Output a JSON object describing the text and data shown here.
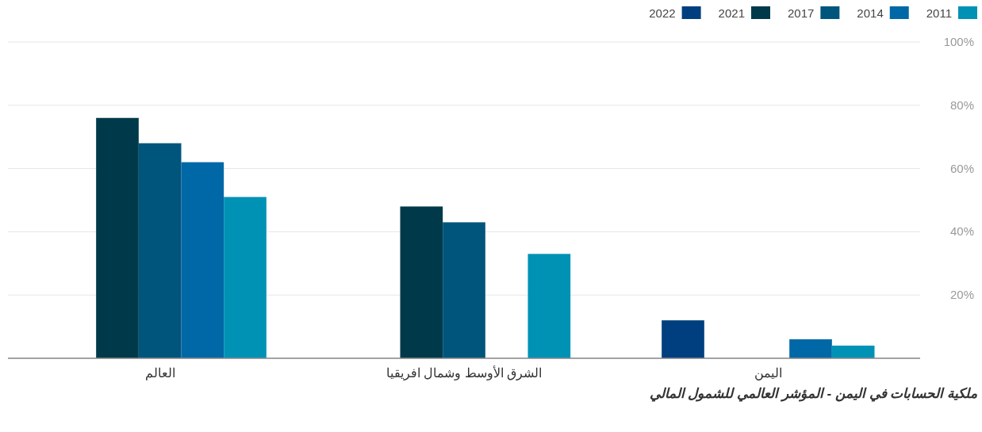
{
  "chart_data": {
    "type": "bar",
    "title": "ملكية الحسابات في اليمن - المؤشر العالمي للشمول المالي",
    "categories": [
      "العالم",
      "الشرق الأوسط وشمال افريقيا",
      "اليمن"
    ],
    "series": [
      {
        "name": "2022",
        "color": "#003f7f",
        "values": [
          null,
          null,
          12
        ]
      },
      {
        "name": "2021",
        "color": "#003a4a",
        "values": [
          76,
          48,
          null
        ]
      },
      {
        "name": "2017",
        "color": "#00557d",
        "values": [
          68,
          43,
          null
        ]
      },
      {
        "name": "2014",
        "color": "#0068a6",
        "values": [
          62,
          null,
          6
        ]
      },
      {
        "name": "2011",
        "color": "#0092b5",
        "values": [
          51,
          33,
          4
        ]
      }
    ],
    "ylim": [
      0,
      100
    ],
    "yticks": [
      {
        "value": 0,
        "label": null
      },
      {
        "value": 20,
        "label": "20%"
      },
      {
        "value": 40,
        "label": "40%"
      },
      {
        "value": 60,
        "label": "60%"
      },
      {
        "value": 80,
        "label": "80%"
      },
      {
        "value": 100,
        "label": "100%"
      }
    ],
    "grid": "y",
    "legend": "top right"
  }
}
